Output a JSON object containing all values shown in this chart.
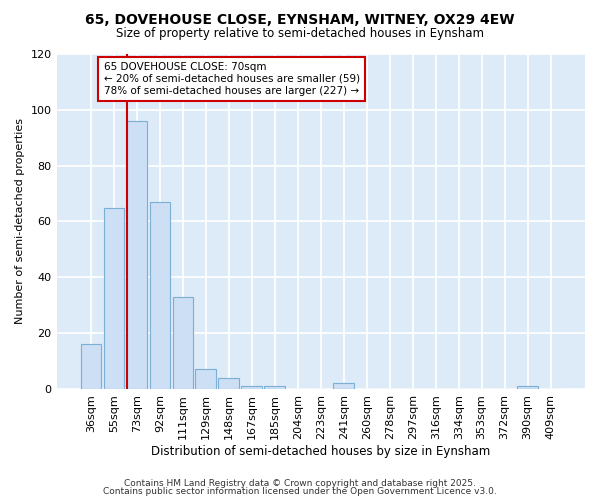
{
  "title1": "65, DOVEHOUSE CLOSE, EYNSHAM, WITNEY, OX29 4EW",
  "title2": "Size of property relative to semi-detached houses in Eynsham",
  "xlabel": "Distribution of semi-detached houses by size in Eynsham",
  "ylabel": "Number of semi-detached properties",
  "categories": [
    "36sqm",
    "55sqm",
    "73sqm",
    "92sqm",
    "111sqm",
    "129sqm",
    "148sqm",
    "167sqm",
    "185sqm",
    "204sqm",
    "223sqm",
    "241sqm",
    "260sqm",
    "278sqm",
    "297sqm",
    "316sqm",
    "334sqm",
    "353sqm",
    "372sqm",
    "390sqm",
    "409sqm"
  ],
  "values": [
    16,
    65,
    96,
    67,
    33,
    7,
    4,
    1,
    1,
    0,
    0,
    2,
    0,
    0,
    0,
    0,
    0,
    0,
    0,
    1,
    0
  ],
  "bar_color": "#ccdff5",
  "bar_edge_color": "#7bafd4",
  "redline_index": 2,
  "annotation_title": "65 DOVEHOUSE CLOSE: 70sqm",
  "annotation_line1": "← 20% of semi-detached houses are smaller (59)",
  "annotation_line2": "78% of semi-detached houses are larger (227) →",
  "annotation_box_color": "#ffffff",
  "annotation_border_color": "#cc0000",
  "redline_color": "#cc0000",
  "plot_bg_color": "#ddeaf7",
  "fig_bg_color": "#ffffff",
  "grid_color": "#ffffff",
  "ylim": [
    0,
    120
  ],
  "yticks": [
    0,
    20,
    40,
    60,
    80,
    100,
    120
  ],
  "footer1": "Contains HM Land Registry data © Crown copyright and database right 2025.",
  "footer2": "Contains public sector information licensed under the Open Government Licence v3.0."
}
